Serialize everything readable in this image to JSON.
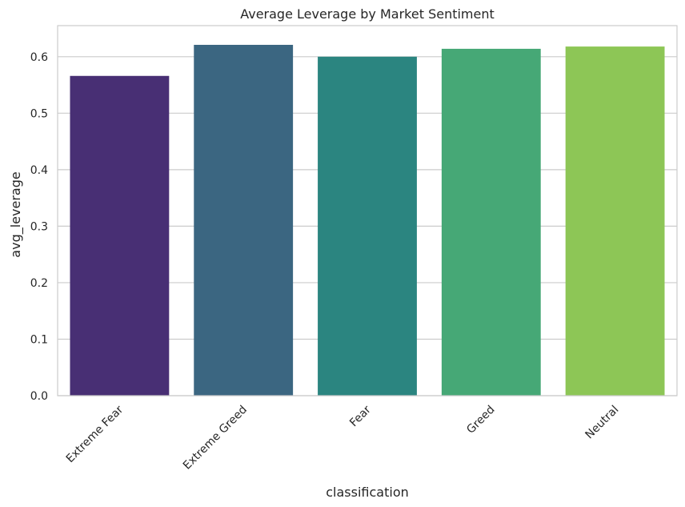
{
  "chart_data": {
    "type": "bar",
    "title": "Average Leverage by Market Sentiment",
    "xlabel": "classification",
    "ylabel": "avg_leverage",
    "categories": [
      "Extreme Fear",
      "Extreme Greed",
      "Fear",
      "Greed",
      "Neutral"
    ],
    "values": [
      0.566,
      0.621,
      0.6,
      0.614,
      0.618
    ],
    "colors": [
      "#482f74",
      "#3b6681",
      "#2b8580",
      "#46a876",
      "#8dc656"
    ],
    "ylim": [
      0,
      0.655
    ],
    "yticks": [
      {
        "value": 0.0,
        "label": "0.0"
      },
      {
        "value": 0.1,
        "label": "0.1"
      },
      {
        "value": 0.2,
        "label": "0.2"
      },
      {
        "value": 0.3,
        "label": "0.3"
      },
      {
        "value": 0.4,
        "label": "0.4"
      },
      {
        "value": 0.5,
        "label": "0.5"
      },
      {
        "value": 0.6,
        "label": "0.6"
      }
    ],
    "grid": true,
    "grid_color": "#cccccc",
    "x_tick_rotation": 45
  }
}
